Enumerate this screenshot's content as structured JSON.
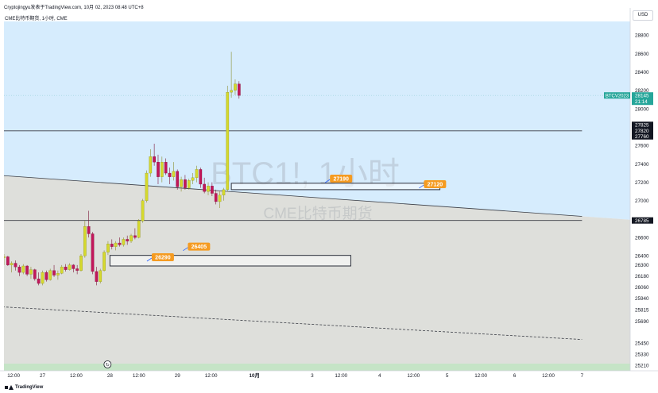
{
  "header": {
    "publisher_line": "Cryptojingyu发表于TradingView.com,  10月 02, 2023 08:48 UTC+8",
    "symbol_line": "CME比特币期货, 1小时, CME"
  },
  "watermark": {
    "symbol": "BTC1!, 1小时",
    "name": "CME比特币期货"
  },
  "footer": {
    "brand": "TradingView"
  },
  "currency_button": "USD",
  "colors": {
    "bull": "#d5d92e",
    "bear": "#c2185b",
    "sky": "#d6ecfd",
    "range": "#dedfdb",
    "label_orange": "#f59b21",
    "price_tag": "#26a69a",
    "bottom_band": "#c5e4c6"
  },
  "chart_data": {
    "type": "candlestick",
    "interval": "1小时",
    "y_axis": {
      "range": [
        25150,
        28950
      ],
      "ticks": [
        28800,
        28600,
        28400,
        28200,
        28000,
        27600,
        27400,
        27200,
        27000,
        26600,
        26400,
        26300,
        26180,
        26060,
        25940,
        25815,
        25690,
        25450,
        25330,
        25210
      ]
    },
    "x_axis": {
      "range": [
        0,
        1.3
      ],
      "ticks": [
        {
          "x": 0.02,
          "label": "12:00"
        },
        {
          "x": 0.08,
          "label": "27"
        },
        {
          "x": 0.15,
          "label": "12:00"
        },
        {
          "x": 0.22,
          "label": "28"
        },
        {
          "x": 0.28,
          "label": "12:00"
        },
        {
          "x": 0.36,
          "label": "29"
        },
        {
          "x": 0.43,
          "label": "12:00"
        },
        {
          "x": 0.52,
          "label": "10月"
        },
        {
          "x": 0.64,
          "label": "3"
        },
        {
          "x": 0.7,
          "label": "12:00"
        },
        {
          "x": 0.78,
          "label": "4"
        },
        {
          "x": 0.85,
          "label": "12:00"
        },
        {
          "x": 0.92,
          "label": "5"
        },
        {
          "x": 0.99,
          "label": "12:00"
        },
        {
          "x": 1.06,
          "label": "6"
        },
        {
          "x": 1.13,
          "label": "12:00"
        },
        {
          "x": 1.2,
          "label": "7"
        }
      ]
    },
    "candles": [
      {
        "x": 0.0,
        "o": 26380,
        "h": 26420,
        "l": 26300,
        "c": 26390
      },
      {
        "x": 0.008,
        "o": 26390,
        "h": 26400,
        "l": 26290,
        "c": 26300
      },
      {
        "x": 0.016,
        "o": 26300,
        "h": 26340,
        "l": 26220,
        "c": 26320
      },
      {
        "x": 0.024,
        "o": 26320,
        "h": 26350,
        "l": 26240,
        "c": 26280
      },
      {
        "x": 0.032,
        "o": 26280,
        "h": 26300,
        "l": 26180,
        "c": 26220
      },
      {
        "x": 0.04,
        "o": 26220,
        "h": 26310,
        "l": 26200,
        "c": 26290
      },
      {
        "x": 0.048,
        "o": 26290,
        "h": 26300,
        "l": 26180,
        "c": 26200
      },
      {
        "x": 0.056,
        "o": 26200,
        "h": 26280,
        "l": 26150,
        "c": 26250
      },
      {
        "x": 0.064,
        "o": 26250,
        "h": 26260,
        "l": 26130,
        "c": 26150
      },
      {
        "x": 0.072,
        "o": 26150,
        "h": 26220,
        "l": 26080,
        "c": 26100
      },
      {
        "x": 0.08,
        "o": 26100,
        "h": 26240,
        "l": 26080,
        "c": 26220
      },
      {
        "x": 0.088,
        "o": 26220,
        "h": 26240,
        "l": 26120,
        "c": 26140
      },
      {
        "x": 0.096,
        "o": 26140,
        "h": 26260,
        "l": 26130,
        "c": 26240
      },
      {
        "x": 0.104,
        "o": 26240,
        "h": 26300,
        "l": 26170,
        "c": 26190
      },
      {
        "x": 0.112,
        "o": 26190,
        "h": 26240,
        "l": 26140,
        "c": 26210
      },
      {
        "x": 0.12,
        "o": 26210,
        "h": 26300,
        "l": 26200,
        "c": 26280
      },
      {
        "x": 0.128,
        "o": 26280,
        "h": 26310,
        "l": 26230,
        "c": 26250
      },
      {
        "x": 0.136,
        "o": 26250,
        "h": 26320,
        "l": 26240,
        "c": 26300
      },
      {
        "x": 0.144,
        "o": 26300,
        "h": 26310,
        "l": 26220,
        "c": 26260
      },
      {
        "x": 0.152,
        "o": 26260,
        "h": 26300,
        "l": 26200,
        "c": 26240
      },
      {
        "x": 0.16,
        "o": 26240,
        "h": 26420,
        "l": 26230,
        "c": 26400
      },
      {
        "x": 0.168,
        "o": 26400,
        "h": 26780,
        "l": 26380,
        "c": 26720
      },
      {
        "x": 0.176,
        "o": 26720,
        "h": 26890,
        "l": 26600,
        "c": 26640
      },
      {
        "x": 0.184,
        "o": 26640,
        "h": 26660,
        "l": 26200,
        "c": 26230
      },
      {
        "x": 0.192,
        "o": 26230,
        "h": 26280,
        "l": 26080,
        "c": 26120
      },
      {
        "x": 0.2,
        "o": 26120,
        "h": 26260,
        "l": 26100,
        "c": 26240
      },
      {
        "x": 0.208,
        "o": 26240,
        "h": 26460,
        "l": 26230,
        "c": 26440
      },
      {
        "x": 0.216,
        "o": 26440,
        "h": 26560,
        "l": 26410,
        "c": 26530
      },
      {
        "x": 0.224,
        "o": 26530,
        "h": 26580,
        "l": 26470,
        "c": 26500
      },
      {
        "x": 0.232,
        "o": 26500,
        "h": 26560,
        "l": 26460,
        "c": 26540
      },
      {
        "x": 0.24,
        "o": 26540,
        "h": 26600,
        "l": 26500,
        "c": 26520
      },
      {
        "x": 0.248,
        "o": 26520,
        "h": 26600,
        "l": 26500,
        "c": 26580
      },
      {
        "x": 0.256,
        "o": 26580,
        "h": 26620,
        "l": 26520,
        "c": 26560
      },
      {
        "x": 0.264,
        "o": 26560,
        "h": 26640,
        "l": 26540,
        "c": 26620
      },
      {
        "x": 0.272,
        "o": 26620,
        "h": 26700,
        "l": 26580,
        "c": 26600
      },
      {
        "x": 0.28,
        "o": 26600,
        "h": 26800,
        "l": 26590,
        "c": 26780
      },
      {
        "x": 0.288,
        "o": 26780,
        "h": 27020,
        "l": 26760,
        "c": 27000
      },
      {
        "x": 0.296,
        "o": 27000,
        "h": 27330,
        "l": 26980,
        "c": 27300
      },
      {
        "x": 0.304,
        "o": 27300,
        "h": 27560,
        "l": 27260,
        "c": 27480
      },
      {
        "x": 0.312,
        "o": 27480,
        "h": 27620,
        "l": 27380,
        "c": 27420
      },
      {
        "x": 0.32,
        "o": 27420,
        "h": 27500,
        "l": 27180,
        "c": 27260
      },
      {
        "x": 0.328,
        "o": 27260,
        "h": 27480,
        "l": 27200,
        "c": 27420
      },
      {
        "x": 0.336,
        "o": 27420,
        "h": 27460,
        "l": 27280,
        "c": 27300
      },
      {
        "x": 0.344,
        "o": 27300,
        "h": 27360,
        "l": 27180,
        "c": 27260
      },
      {
        "x": 0.352,
        "o": 27260,
        "h": 27420,
        "l": 27220,
        "c": 27320
      },
      {
        "x": 0.36,
        "o": 27320,
        "h": 27340,
        "l": 27120,
        "c": 27150
      },
      {
        "x": 0.368,
        "o": 27150,
        "h": 27260,
        "l": 27100,
        "c": 27230
      },
      {
        "x": 0.376,
        "o": 27230,
        "h": 27280,
        "l": 27120,
        "c": 27140
      },
      {
        "x": 0.384,
        "o": 27140,
        "h": 27240,
        "l": 27120,
        "c": 27220
      },
      {
        "x": 0.392,
        "o": 27220,
        "h": 27300,
        "l": 27180,
        "c": 27250
      },
      {
        "x": 0.4,
        "o": 27250,
        "h": 27380,
        "l": 27200,
        "c": 27340
      },
      {
        "x": 0.408,
        "o": 27340,
        "h": 27360,
        "l": 27140,
        "c": 27180
      },
      {
        "x": 0.416,
        "o": 27180,
        "h": 27250,
        "l": 27080,
        "c": 27100
      },
      {
        "x": 0.424,
        "o": 27100,
        "h": 27200,
        "l": 27060,
        "c": 27160
      },
      {
        "x": 0.432,
        "o": 27160,
        "h": 27200,
        "l": 27050,
        "c": 27080
      },
      {
        "x": 0.44,
        "o": 27080,
        "h": 27120,
        "l": 26960,
        "c": 26990
      },
      {
        "x": 0.448,
        "o": 26990,
        "h": 27100,
        "l": 26920,
        "c": 27060
      },
      {
        "x": 0.456,
        "o": 27060,
        "h": 27140,
        "l": 27000,
        "c": 27120
      },
      {
        "x": 0.464,
        "o": 27120,
        "h": 28250,
        "l": 27100,
        "c": 28180
      },
      {
        "x": 0.472,
        "o": 28180,
        "h": 28620,
        "l": 28120,
        "c": 28200
      },
      {
        "x": 0.48,
        "o": 28200,
        "h": 28320,
        "l": 28150,
        "c": 28270
      },
      {
        "x": 0.488,
        "o": 28270,
        "h": 28300,
        "l": 28110,
        "c": 28145
      }
    ],
    "lines": [
      {
        "name": "descending-trendline",
        "style": "solid",
        "from": {
          "x": -0.02,
          "y": 27280
        },
        "to": {
          "x": 1.2,
          "y": 26830
        }
      },
      {
        "name": "lower-trendline",
        "style": "dashed",
        "from": {
          "x": -0.02,
          "y": 25850
        },
        "to": {
          "x": 1.2,
          "y": 25490
        }
      },
      {
        "name": "resistance-line",
        "style": "solid",
        "from": {
          "x": -0.02,
          "y": 27760
        },
        "to": {
          "x": 1.2,
          "y": 27760
        }
      },
      {
        "name": "support-line",
        "style": "solid",
        "from": {
          "x": -0.02,
          "y": 26785
        },
        "to": {
          "x": 1.2,
          "y": 26785
        }
      }
    ],
    "zones": [
      {
        "name": "gap-zone-upper",
        "x0": 0.472,
        "x1": 0.905,
        "y0": 27120,
        "y1": 27190
      },
      {
        "name": "gap-zone-lower",
        "x0": 0.22,
        "x1": 0.72,
        "y0": 26290,
        "y1": 26405
      }
    ],
    "annotations": [
      {
        "label": "27190",
        "x": 0.68,
        "y": 27240
      },
      {
        "label": "27120",
        "x": 0.875,
        "y": 27180
      },
      {
        "label": "26290",
        "x": 0.31,
        "y": 26385
      },
      {
        "label": "26405",
        "x": 0.385,
        "y": 26500
      }
    ],
    "price_labels": [
      {
        "text": "27825",
        "y": 27825
      },
      {
        "text": "27820",
        "y": 27760
      },
      {
        "text": "27760",
        "y": 27700
      },
      {
        "text": "26785",
        "y": 26785
      }
    ],
    "last_price": {
      "symbol": "BTCV2023",
      "price": "28145",
      "countdown": "21:14"
    }
  }
}
